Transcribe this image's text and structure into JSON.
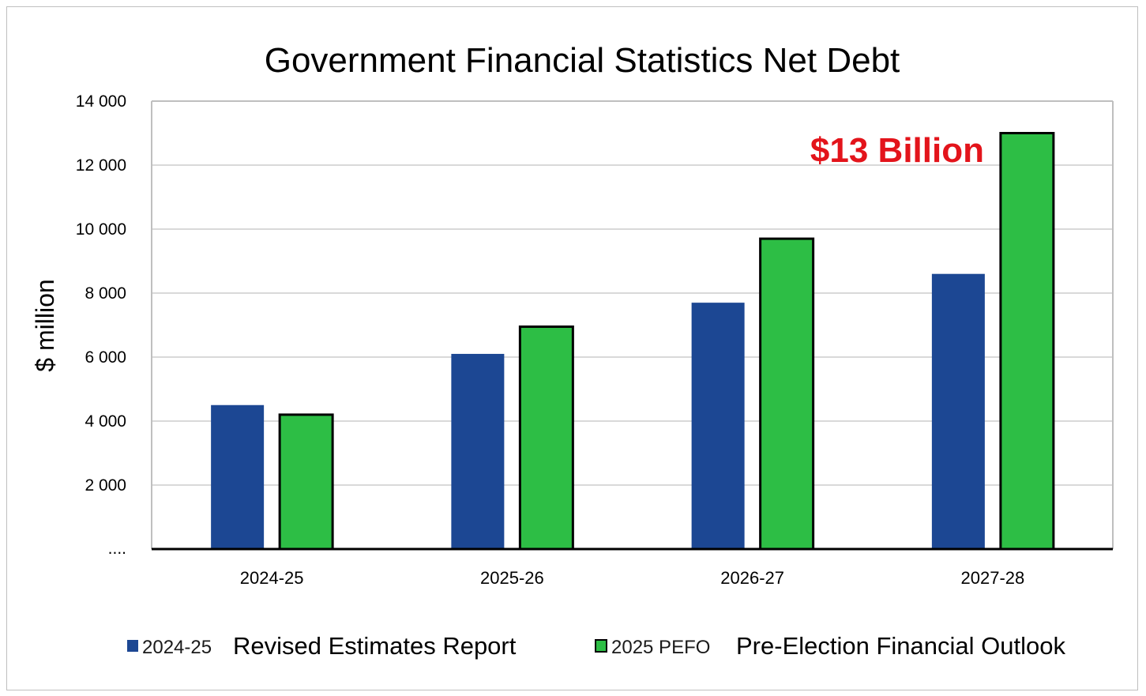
{
  "chart_data": {
    "type": "bar",
    "title": "Government Financial Statistics Net Debt",
    "ylabel": "$ million",
    "xlabel": "",
    "categories": [
      "2024-25",
      "2025-26",
      "2026-27",
      "2027-28"
    ],
    "ylim": [
      0,
      14000
    ],
    "yticks": [
      {
        "value": 0,
        "label": "...."
      },
      {
        "value": 2000,
        "label": "2 000"
      },
      {
        "value": 4000,
        "label": "4 000"
      },
      {
        "value": 6000,
        "label": "6 000"
      },
      {
        "value": 8000,
        "label": "8 000"
      },
      {
        "value": 10000,
        "label": "10 000"
      },
      {
        "value": 12000,
        "label": "12 000"
      },
      {
        "value": 14000,
        "label": "14 000"
      }
    ],
    "grid": true,
    "legend_position": "bottom",
    "series": [
      {
        "name": "Revised Estimates Report",
        "legend_prefix": "2024-25",
        "color": "#1c4793",
        "outlined": false,
        "values": [
          4500,
          6100,
          7700,
          8600
        ]
      },
      {
        "name": "Pre-Election Financial Outlook",
        "legend_prefix": "2025 PEFO",
        "color": "#2dbe45",
        "outlined": true,
        "values": [
          4200,
          6950,
          9700,
          13000
        ]
      }
    ],
    "annotations": [
      {
        "text": "$13 Billion",
        "color": "#e3141b",
        "near_category": "2027-28"
      }
    ]
  }
}
